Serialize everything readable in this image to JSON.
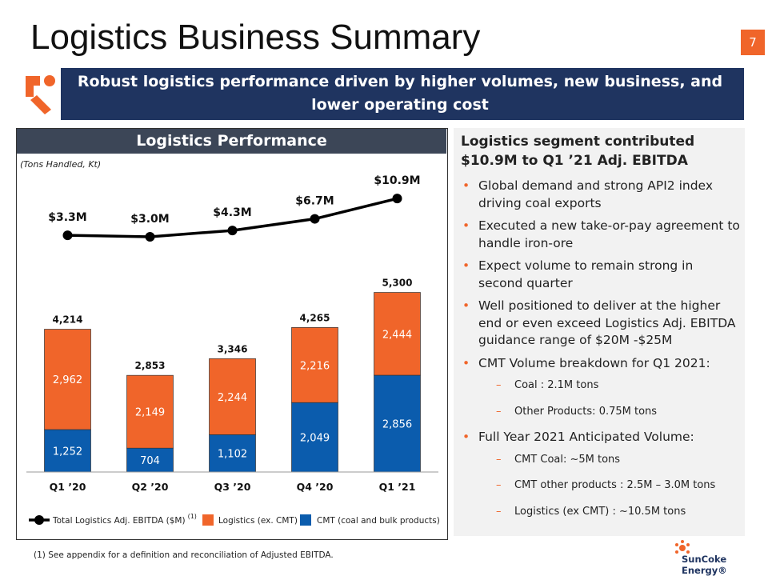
{
  "title": "Logistics Business Summary",
  "page_number": "7",
  "banner": "Robust logistics performance driven by higher volumes, new business, and lower operating cost",
  "panel_title": "Logistics Performance",
  "chart_data": {
    "type": "bar",
    "stacked": true,
    "y_label": "(Tons Handled, Kt)",
    "categories": [
      "Q1 ’20",
      "Q2 ’20",
      "Q3 ’20",
      "Q4 ’20",
      "Q1 ’21"
    ],
    "series": [
      {
        "name": "CMT (coal and bulk products)",
        "color": "#0b5cad",
        "values": [
          1252,
          704,
          1102,
          2049,
          2856
        ],
        "value_labels": [
          "1,252",
          "704",
          "1,102",
          "2,049",
          "2,856"
        ]
      },
      {
        "name": "Logistics (ex. CMT)",
        "color": "#f0652a",
        "values": [
          2962,
          2149,
          2244,
          2216,
          2444
        ],
        "value_labels": [
          "2,962",
          "2,149",
          "2,244",
          "2,216",
          "2,444"
        ]
      },
      {
        "name": "Total Logistics Adj. EBITDA ($M)",
        "legend_note": "(1)",
        "type": "line",
        "axis": "y2",
        "color": "#000000",
        "values": [
          3.3,
          3.0,
          4.3,
          6.7,
          10.9
        ],
        "value_labels": [
          "$3.3M",
          "$3.0M",
          "$4.3M",
          "$6.7M",
          "$10.9M"
        ]
      }
    ],
    "totals": {
      "values": [
        4214,
        2853,
        3346,
        4265,
        5300
      ],
      "value_labels": [
        "4,214",
        "2,853",
        "3,346",
        "4,265",
        "5,300"
      ]
    },
    "ylim": [
      0,
      8500
    ],
    "y2lim": [
      -45.6,
      13.9
    ]
  },
  "summary": {
    "heading": "Logistics segment contributed $10.9M to Q1 ’21 Adj. EBITDA",
    "bullets": [
      {
        "text": "Global demand and strong API2 index driving coal exports",
        "sub": []
      },
      {
        "text": "Executed a new take-or-pay agreement to handle iron-ore",
        "sub": []
      },
      {
        "text": "Expect volume to remain strong in second quarter",
        "sub": []
      },
      {
        "text": "Well positioned to deliver at the higher end or even exceed Logistics Adj. EBITDA guidance range of $20M -$25M",
        "sub": []
      },
      {
        "text": "CMT Volume breakdown for Q1 2021:",
        "sub": [
          "Coal : 2.1M tons",
          "Other Products: 0.75M tons"
        ]
      },
      {
        "text": "Full Year 2021 Anticipated Volume:",
        "sub": [
          "CMT Coal: ~5M tons",
          "CMT other products : 2.5M – 3.0M tons",
          "Logistics (ex CMT) : ~10.5M tons"
        ]
      }
    ]
  },
  "footnote": "(1)  See appendix for a definition and reconciliation of Adjusted EBITDA.",
  "logo": "SunCoke Energy®"
}
